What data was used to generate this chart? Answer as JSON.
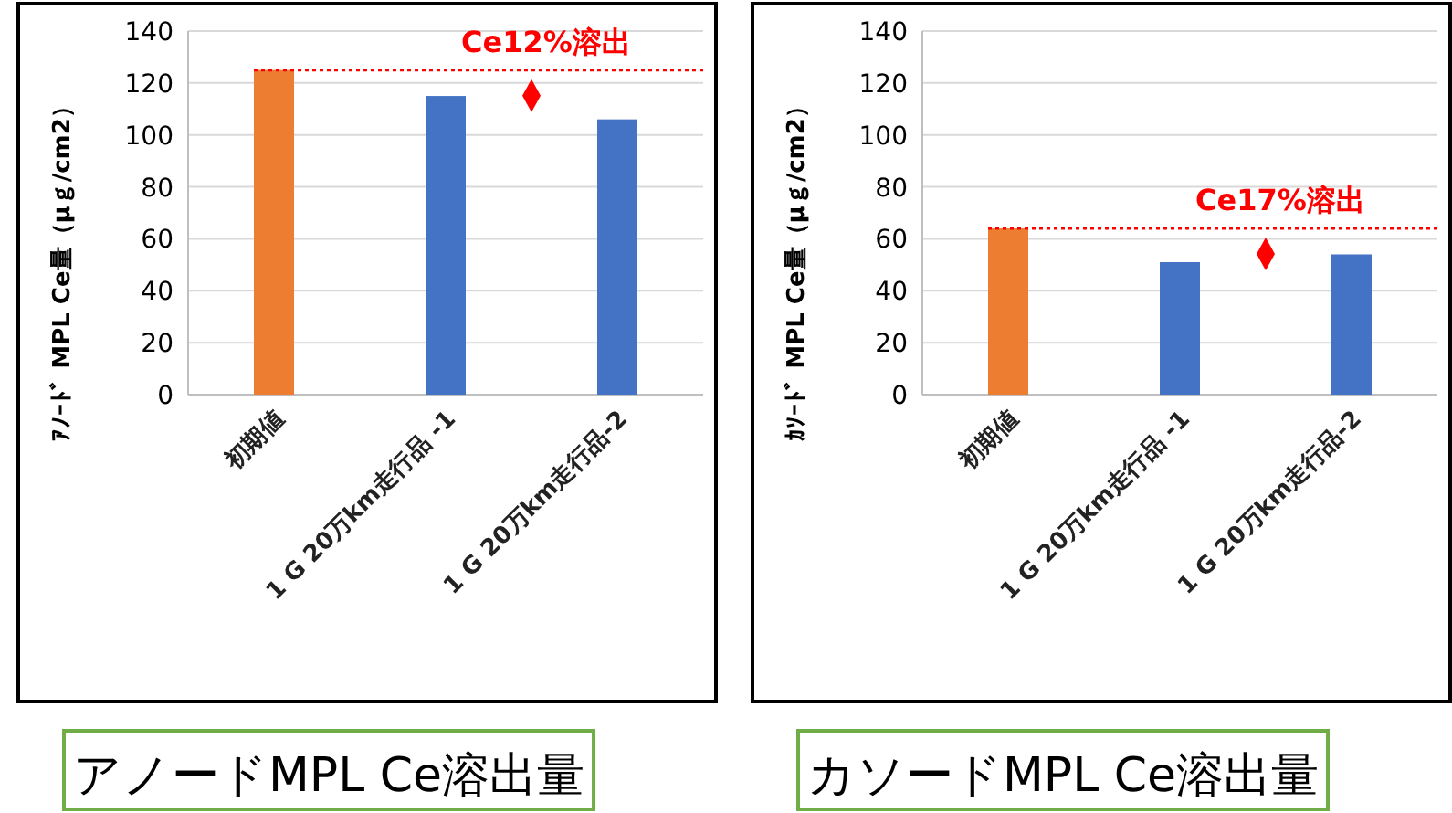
{
  "chart_data": [
    {
      "type": "bar",
      "title": "アノードMPL Ce溶出量",
      "ylabel": "ｱﾉｰﾄﾞ MPL Ce量（μｇ/cm2）",
      "categories": [
        "初期値",
        "1 G 20万km走行品 -1",
        "1 G 20万km走行品-2"
      ],
      "values": [
        125,
        115,
        106
      ],
      "colors": [
        "#ed7d31",
        "#4472c4",
        "#4472c4"
      ],
      "ylim": [
        0,
        140
      ],
      "yticks": [
        0,
        20,
        40,
        60,
        80,
        100,
        120,
        140
      ],
      "grid": "y",
      "ref_lines": [
        {
          "axis": "y",
          "value": 125,
          "label": "Ce12%溶出",
          "color": "#ff0000",
          "line_style": "dotted"
        }
      ]
    },
    {
      "type": "bar",
      "title": "カソードMPL Ce溶出量",
      "ylabel": "ｶｿｰﾄﾞ MPL Ce量（μｇ/cm2）",
      "categories": [
        "初期値",
        "1 G 20万km走行品 -1",
        "1 G 20万km走行品-2"
      ],
      "values": [
        64,
        51,
        54
      ],
      "colors": [
        "#ed7d31",
        "#4472c4",
        "#4472c4"
      ],
      "ylim": [
        0,
        140
      ],
      "yticks": [
        0,
        20,
        40,
        60,
        80,
        100,
        120,
        140
      ],
      "grid": "y",
      "ref_lines": [
        {
          "axis": "y",
          "value": 64,
          "label": "Ce17%溶出",
          "color": "#ff0000",
          "line_style": "dotted"
        }
      ]
    }
  ]
}
